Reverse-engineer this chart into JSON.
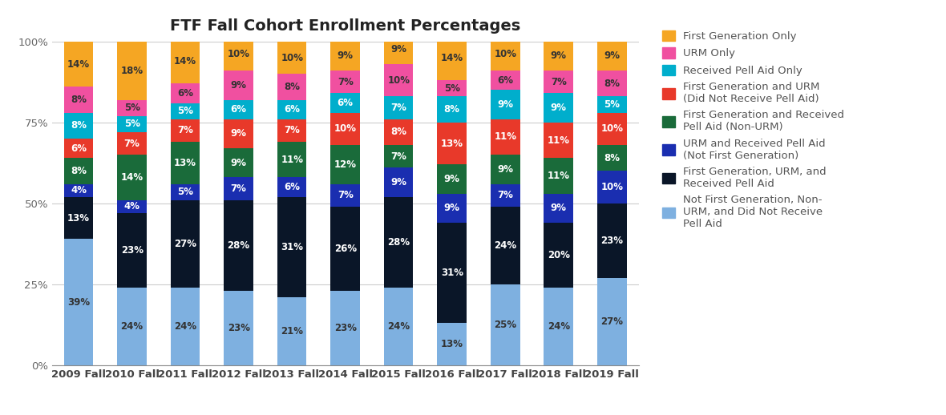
{
  "title": "FTF Fall Cohort Enrollment Percentages",
  "years": [
    "2009 Fall",
    "2010 Fall",
    "2011 Fall",
    "2012 Fall",
    "2013 Fall",
    "2014 Fall",
    "2015 Fall",
    "2016 Fall",
    "2017 Fall",
    "2018 Fall",
    "2019 Fall"
  ],
  "categories": [
    "Not First Generation, Non-URM, and Did Not Receive Pell Aid",
    "First Generation, URM, and Received Pell Aid",
    "URM and Received Pell Aid (Not First Generation)",
    "First Generation and Received Pell Aid (Non-URM)",
    "First Generation and URM (Did Not Receive Pell Aid)",
    "Received Pell Aid Only",
    "URM Only",
    "First Generation Only"
  ],
  "colors": [
    "#7eb0e0",
    "#0a1628",
    "#1a2eb0",
    "#1a6b3a",
    "#e8392a",
    "#00aecc",
    "#f050a0",
    "#f5a623"
  ],
  "data": {
    "Not First Generation, Non-URM, and Did Not Receive Pell Aid": [
      39,
      24,
      24,
      23,
      21,
      23,
      24,
      13,
      25,
      24,
      27
    ],
    "First Generation, URM, and Received Pell Aid": [
      13,
      23,
      27,
      28,
      31,
      26,
      28,
      31,
      24,
      20,
      23
    ],
    "URM and Received Pell Aid (Not First Generation)": [
      4,
      4,
      5,
      7,
      6,
      7,
      9,
      9,
      7,
      9,
      10
    ],
    "First Generation and Received Pell Aid (Non-URM)": [
      8,
      14,
      13,
      9,
      11,
      12,
      7,
      9,
      9,
      11,
      8
    ],
    "First Generation and URM (Did Not Receive Pell Aid)": [
      6,
      7,
      7,
      9,
      7,
      10,
      8,
      13,
      11,
      11,
      10
    ],
    "Received Pell Aid Only": [
      8,
      5,
      5,
      6,
      6,
      6,
      7,
      8,
      9,
      9,
      5
    ],
    "URM Only": [
      8,
      5,
      6,
      9,
      8,
      7,
      10,
      5,
      6,
      7,
      8
    ],
    "First Generation Only": [
      14,
      18,
      14,
      10,
      10,
      9,
      9,
      14,
      10,
      9,
      9
    ]
  },
  "label_colors": {
    "Not First Generation, Non-URM, and Did Not Receive Pell Aid": "#333333",
    "First Generation, URM, and Received Pell Aid": "#ffffff",
    "URM and Received Pell Aid (Not First Generation)": "#ffffff",
    "First Generation and Received Pell Aid (Non-URM)": "#ffffff",
    "First Generation and URM (Did Not Receive Pell Aid)": "#ffffff",
    "Received Pell Aid Only": "#ffffff",
    "URM Only": "#333333",
    "First Generation Only": "#333333"
  },
  "legend_labels": [
    "First Generation Only",
    "URM Only",
    "Received Pell Aid Only",
    "First Generation and URM\n(Did Not Receive Pell Aid)",
    "First Generation and Received\nPell Aid (Non-URM)",
    "URM and Received Pell Aid\n(Not First Generation)",
    "First Generation, URM, and\nReceived Pell Aid",
    "Not First Generation, Non-\nURM, and Did Not Receive\nPell Aid"
  ],
  "background_color": "#ffffff",
  "title_fontsize": 14,
  "tick_fontsize": 9.5,
  "label_fontsize": 8.5,
  "legend_fontsize": 9.5,
  "ylim": [
    0,
    100
  ],
  "bar_width": 0.55
}
